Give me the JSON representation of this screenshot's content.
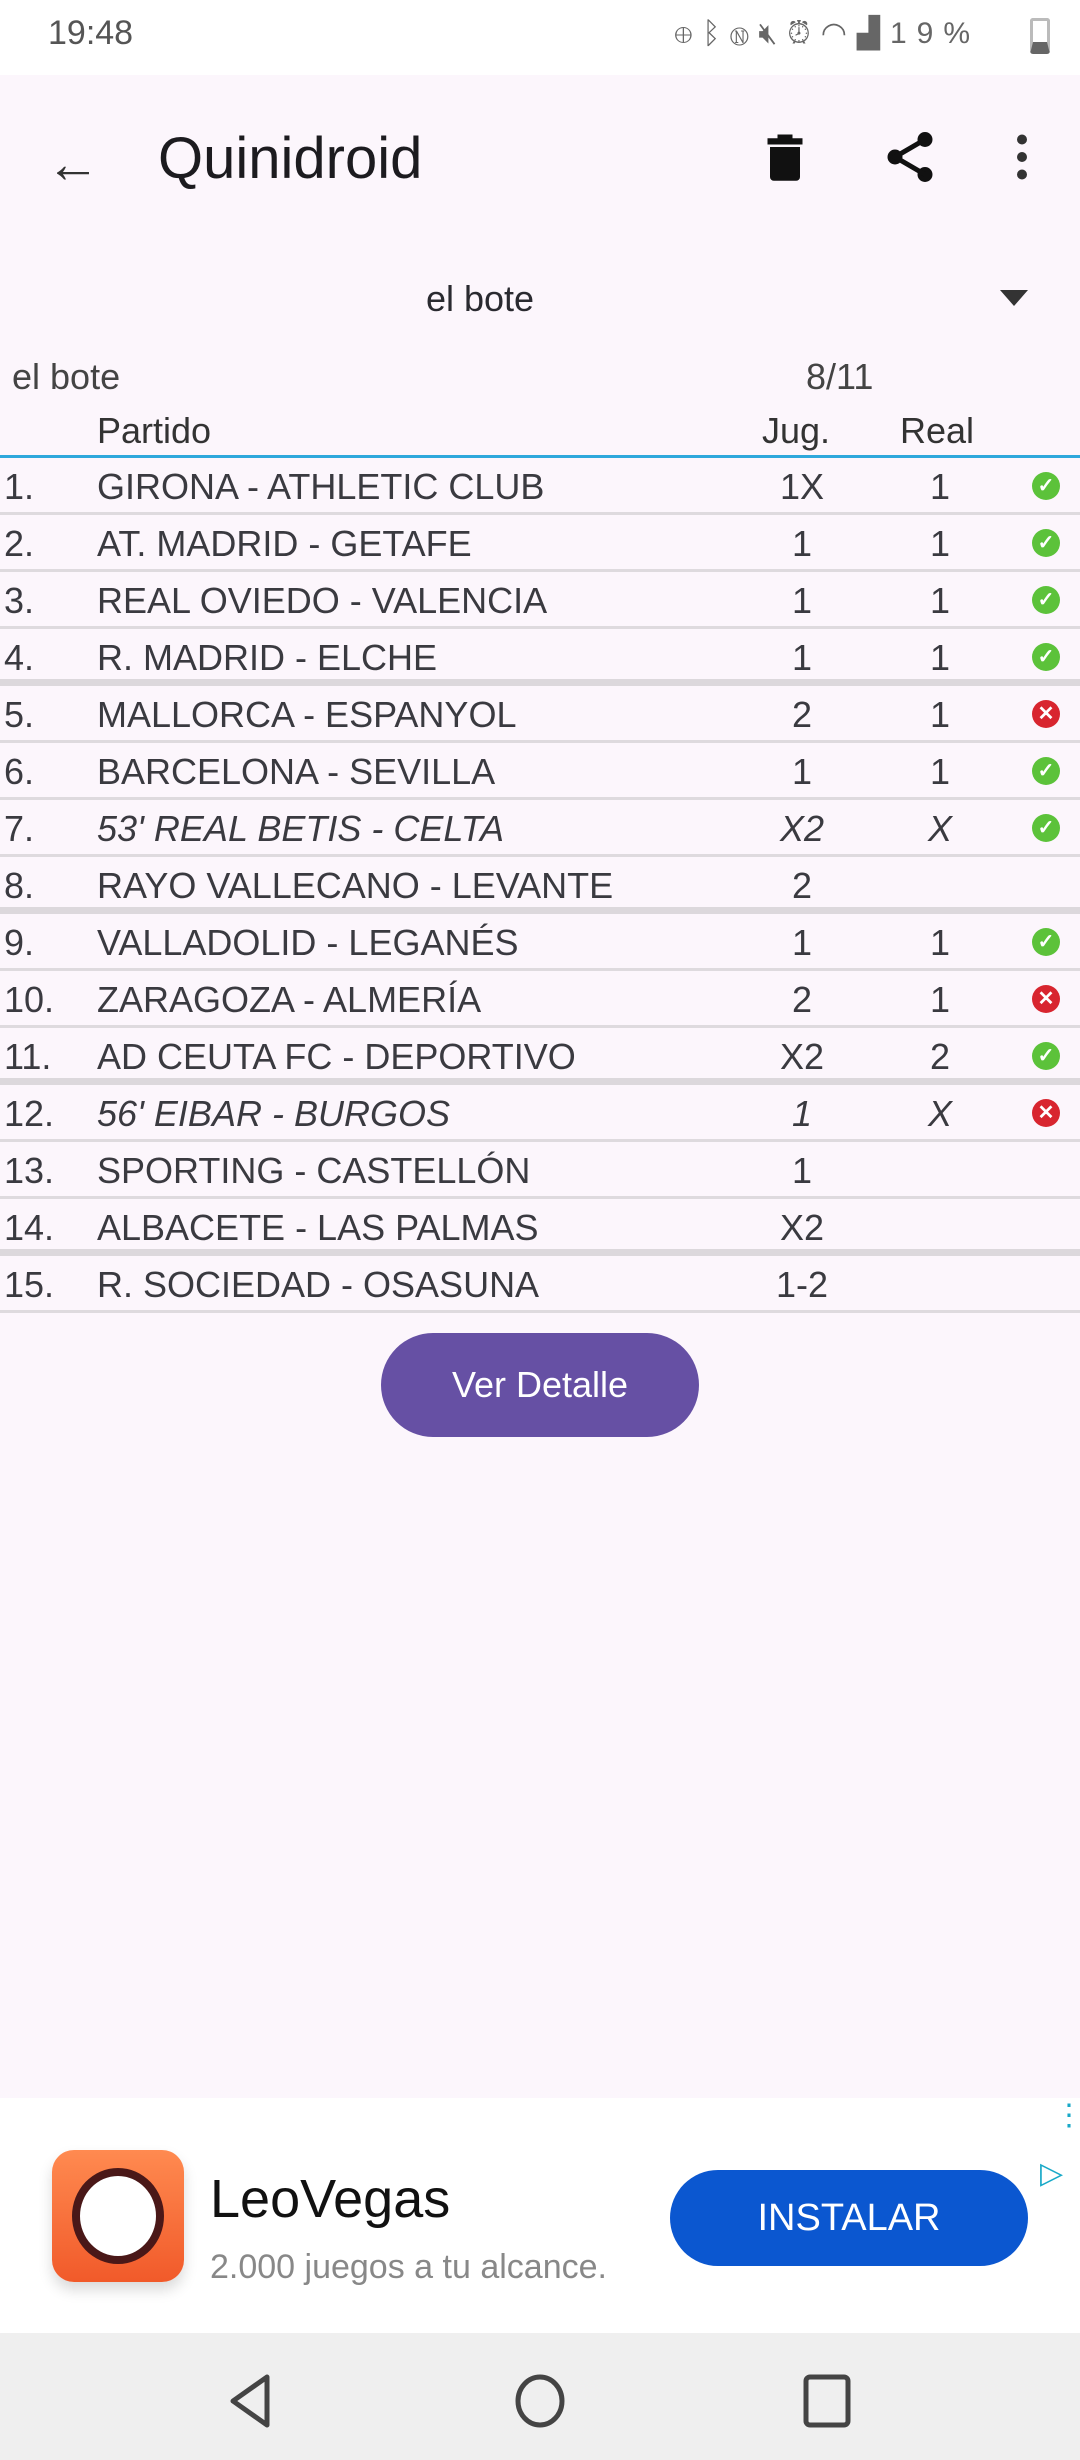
{
  "status_bar": {
    "time": "19:48",
    "battery": "19%",
    "icons": [
      "data-saver-icon",
      "bluetooth-icon",
      "nfc-icon",
      "mute-icon",
      "alarm-icon",
      "wifi-icon",
      "signal-icon",
      "battery-icon"
    ]
  },
  "toolbar": {
    "title": "Quinidroid",
    "icons": [
      "back-arrow-icon",
      "trash-icon",
      "share-icon",
      "more-vert-icon"
    ]
  },
  "spinner": {
    "selected": "el bote"
  },
  "summary": {
    "name": "el bote",
    "score": "8/11"
  },
  "table": {
    "headers": {
      "match": "Partido",
      "jug": "Jug.",
      "real": "Real"
    },
    "rows": [
      {
        "num": "1.",
        "match": "GIRONA - ATHLETIC CLUB",
        "jug": "1X",
        "real": "1",
        "status": "ok"
      },
      {
        "num": "2.",
        "match": "AT. MADRID - GETAFE",
        "jug": "1",
        "real": "1",
        "status": "ok"
      },
      {
        "num": "3.",
        "match": "REAL OVIEDO - VALENCIA",
        "jug": "1",
        "real": "1",
        "status": "ok"
      },
      {
        "num": "4.",
        "match": "R. MADRID - ELCHE",
        "jug": "1",
        "real": "1",
        "status": "ok"
      },
      {
        "num": "5.",
        "match": "MALLORCA - ESPANYOL",
        "jug": "2",
        "real": "1",
        "status": "fail"
      },
      {
        "num": "6.",
        "match": "BARCELONA - SEVILLA",
        "jug": "1",
        "real": "1",
        "status": "ok"
      },
      {
        "num": "7.",
        "match": "53' REAL BETIS - CELTA",
        "jug": "X2",
        "real": "X",
        "status": "ok",
        "live": true
      },
      {
        "num": "8.",
        "match": "RAYO VALLECANO - LEVANTE",
        "jug": "2",
        "real": "",
        "status": ""
      },
      {
        "num": "9.",
        "match": "VALLADOLID - LEGANÉS",
        "jug": "1",
        "real": "1",
        "status": "ok"
      },
      {
        "num": "10.",
        "match": "ZARAGOZA - ALMERÍA",
        "jug": "2",
        "real": "1",
        "status": "fail"
      },
      {
        "num": "11.",
        "match": "AD CEUTA FC - DEPORTIVO",
        "jug": "X2",
        "real": "2",
        "status": "ok"
      },
      {
        "num": "12.",
        "match": "56' EIBAR - BURGOS",
        "jug": "1",
        "real": "X",
        "status": "fail",
        "live": true
      },
      {
        "num": "13.",
        "match": "SPORTING - CASTELLÓN",
        "jug": "1",
        "real": "",
        "status": ""
      },
      {
        "num": "14.",
        "match": "ALBACETE - LAS PALMAS",
        "jug": "X2",
        "real": "",
        "status": ""
      },
      {
        "num": "15.",
        "match": "R. SOCIEDAD - OSASUNA",
        "jug": "1-2",
        "real": "",
        "status": ""
      }
    ]
  },
  "detail_button": "Ver Detalle",
  "ad": {
    "title": "LeoVegas",
    "subtitle": "2.000 juegos a tu alcance.",
    "cta": "INSTALAR"
  },
  "colors": {
    "accent": "#6650a4",
    "header_line": "#2ea8dc",
    "ok": "#5cc23a",
    "fail": "#d8252f",
    "ad_button": "#0b57d0"
  }
}
